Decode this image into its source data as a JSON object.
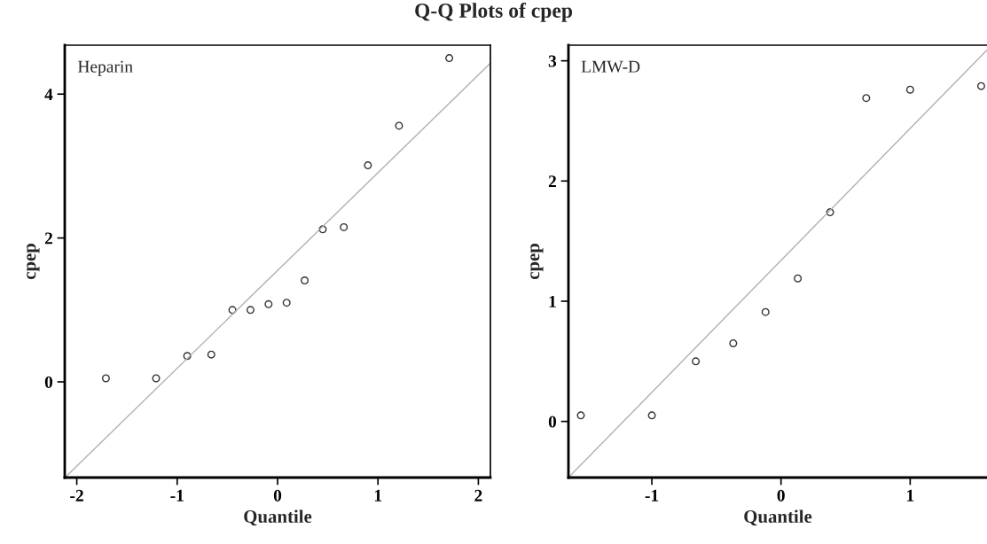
{
  "chart_data": [
    {
      "type": "scatter",
      "title": "Q-Q Plots of cpep",
      "xlabel": "Quantile",
      "ylabel": "cpep",
      "annotations": [
        "Heparin"
      ],
      "xlim": [
        -2.12,
        2.12
      ],
      "ylim": [
        -1.33,
        4.68
      ],
      "xticks": [
        -2,
        -1,
        0,
        1,
        2
      ],
      "yticks": [
        0,
        2,
        4
      ],
      "series": [
        {
          "marker": "circle",
          "color": "#333333",
          "x": [
            -1.71,
            -1.21,
            -0.9,
            -0.66,
            -0.45,
            -0.27,
            -0.09,
            0.09,
            0.27,
            0.45,
            0.66,
            0.9,
            1.21,
            1.71
          ],
          "values": [
            0.05,
            0.05,
            0.36,
            0.38,
            1.0,
            1.0,
            1.08,
            1.1,
            1.41,
            2.12,
            2.15,
            3.01,
            3.56,
            4.5
          ]
        },
        {
          "type": "line",
          "color": "#b0b0b0",
          "x": [
            -2.11,
            2.12
          ],
          "values": [
            -1.32,
            4.43
          ]
        }
      ]
    },
    {
      "type": "scatter",
      "xlabel": "Quantile",
      "ylabel": "cpep",
      "annotations": [
        "LMW-D"
      ],
      "xlim": [
        -1.646,
        1.595
      ],
      "ylim": [
        -0.467,
        3.13
      ],
      "xticks": [
        -1,
        0,
        1
      ],
      "yticks": [
        0,
        1,
        2,
        3
      ],
      "series": [
        {
          "marker": "circle",
          "color": "#333333",
          "x": [
            -1.55,
            -1.0,
            -0.66,
            -0.37,
            -0.12,
            0.13,
            0.38,
            0.66,
            1.0,
            1.55
          ],
          "values": [
            0.05,
            0.05,
            0.5,
            0.65,
            0.91,
            1.19,
            1.74,
            2.69,
            2.76,
            2.79
          ]
        },
        {
          "type": "line",
          "color": "#b0b0b0",
          "x": [
            -1.646,
            1.595
          ],
          "values": [
            -0.467,
            3.09
          ]
        }
      ]
    }
  ]
}
